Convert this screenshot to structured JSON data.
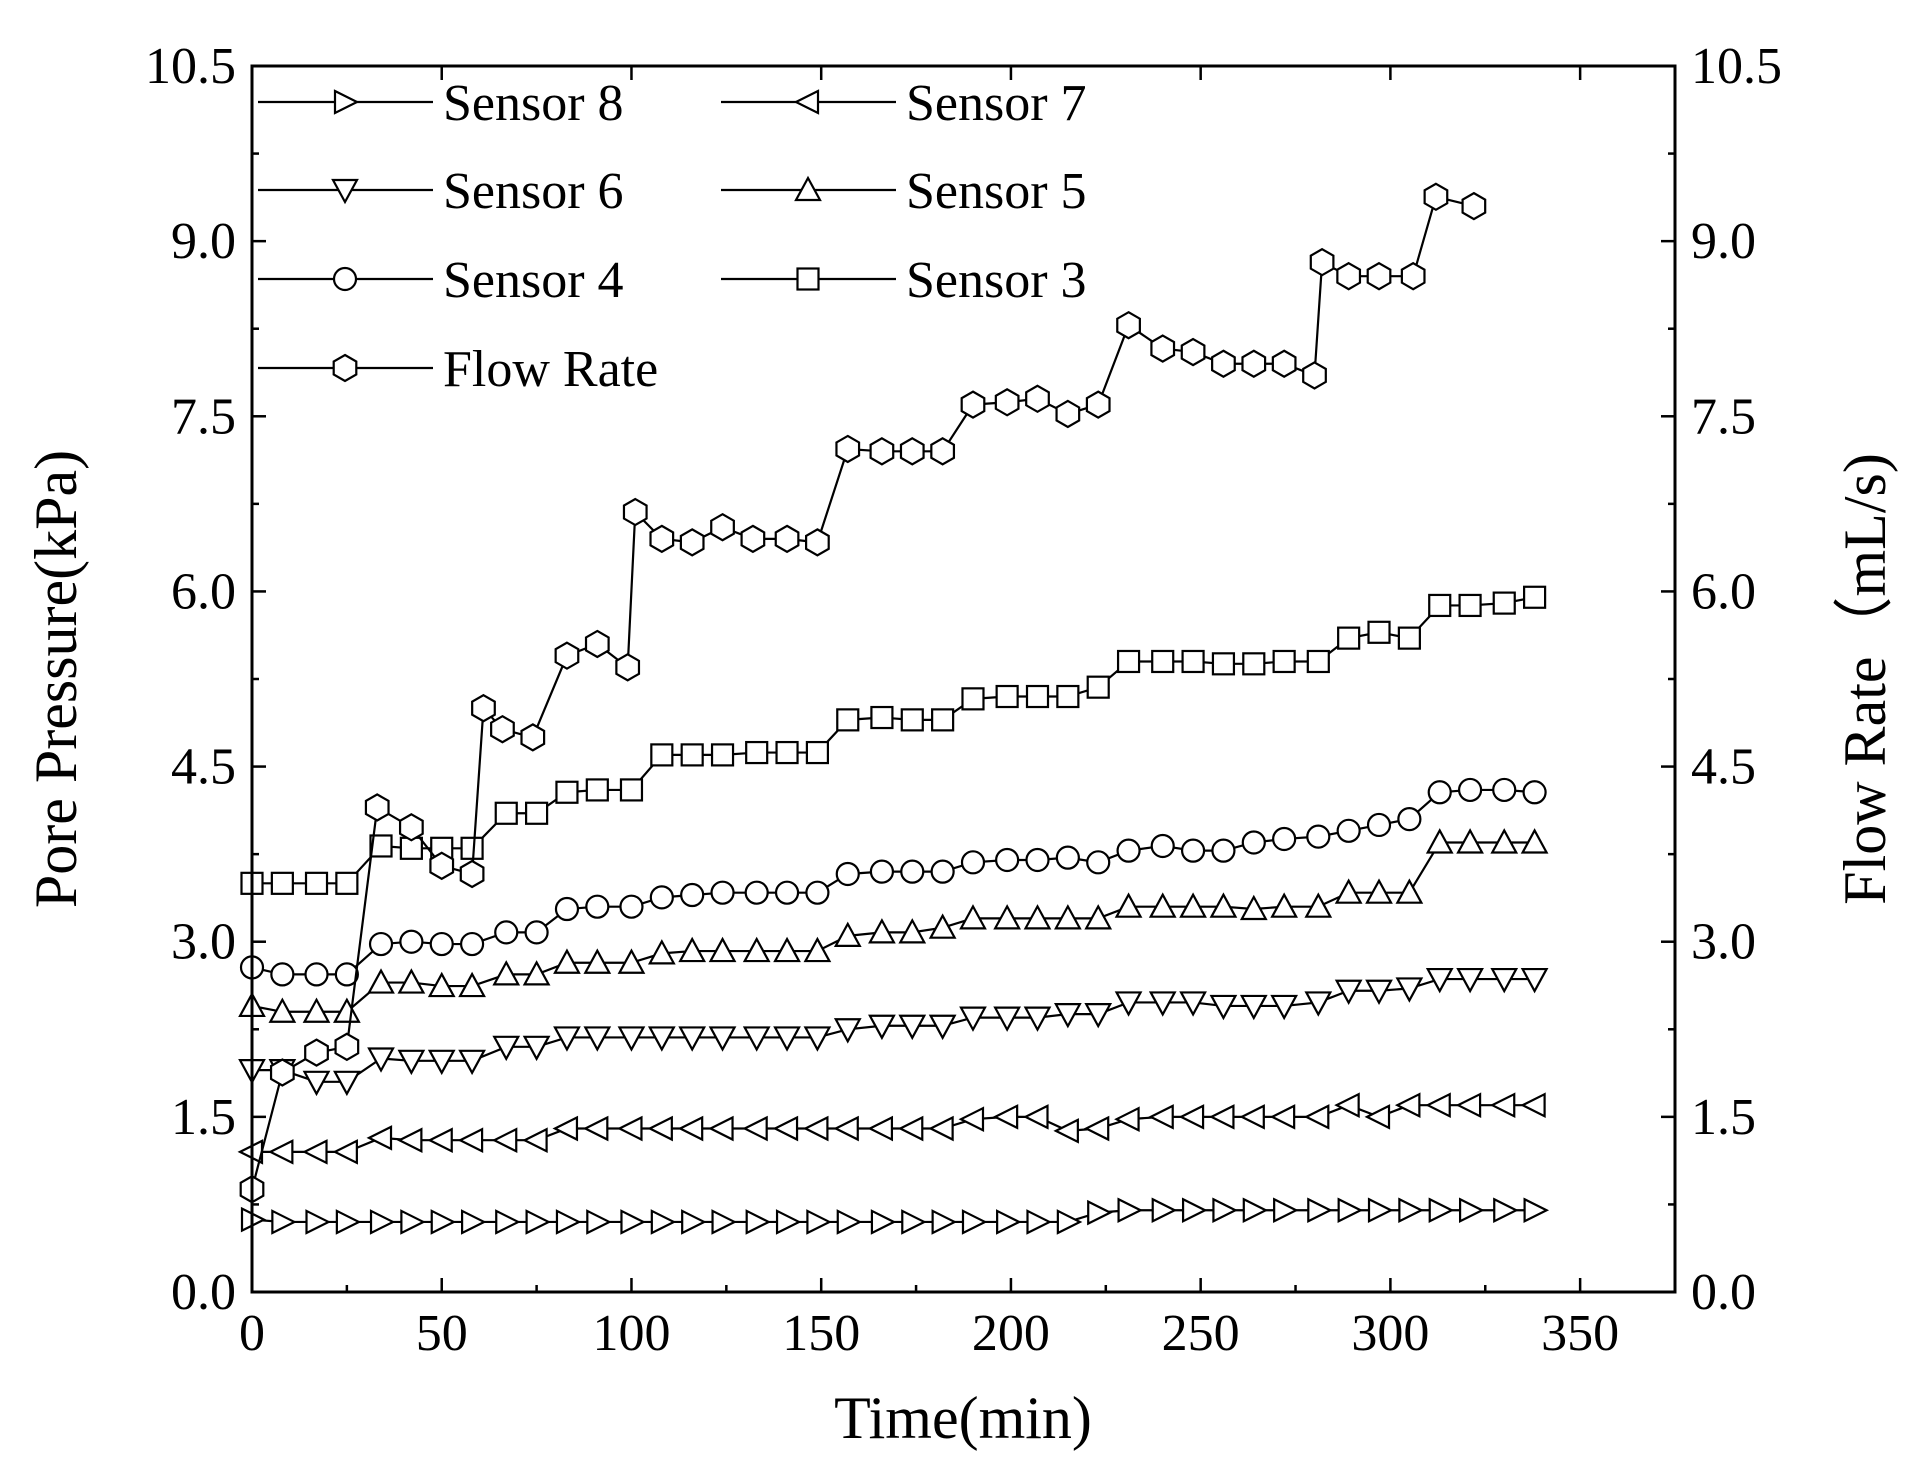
{
  "chart_data": {
    "type": "line",
    "title": "",
    "xlabel": "Time(min)",
    "ylabel": "Pore Pressure(kPa)",
    "y2label": "Flow Rate（mL/s)",
    "xlim": [
      0,
      375
    ],
    "ylim": [
      0,
      10.5
    ],
    "y2lim": [
      0,
      10.5
    ],
    "xticks": [
      "0",
      "50",
      "100",
      "150",
      "200",
      "250",
      "300",
      "350"
    ],
    "xtick_values": [
      0,
      50,
      100,
      150,
      200,
      250,
      300,
      350
    ],
    "yticks": [
      "0.0",
      "1.5",
      "3.0",
      "4.5",
      "6.0",
      "7.5",
      "9.0",
      "10.5"
    ],
    "ytick_values": [
      0,
      1.5,
      3.0,
      4.5,
      6.0,
      7.5,
      9.0,
      10.5
    ],
    "legend_position": "top-left",
    "series": [
      {
        "name": "Sensor 8",
        "marker": "triangle-right",
        "axis": "left",
        "x": [
          0,
          8,
          17,
          25,
          34,
          42,
          50,
          58,
          67,
          75,
          83,
          91,
          100,
          108,
          116,
          124,
          133,
          141,
          149,
          157,
          166,
          174,
          182,
          190,
          199,
          207,
          215,
          223,
          231,
          240,
          248,
          256,
          264,
          272,
          281,
          289,
          297,
          305,
          313,
          321,
          330,
          338
        ],
        "values": [
          0.62,
          0.6,
          0.6,
          0.6,
          0.6,
          0.6,
          0.6,
          0.6,
          0.6,
          0.6,
          0.6,
          0.6,
          0.6,
          0.6,
          0.6,
          0.6,
          0.6,
          0.6,
          0.6,
          0.6,
          0.6,
          0.6,
          0.6,
          0.6,
          0.6,
          0.6,
          0.6,
          0.68,
          0.7,
          0.7,
          0.7,
          0.7,
          0.7,
          0.7,
          0.7,
          0.7,
          0.7,
          0.7,
          0.7,
          0.7,
          0.7,
          0.7
        ]
      },
      {
        "name": "Sensor 7",
        "marker": "triangle-left",
        "axis": "left",
        "x": [
          0,
          8,
          17,
          25,
          34,
          42,
          50,
          58,
          67,
          75,
          83,
          91,
          100,
          108,
          116,
          124,
          133,
          141,
          149,
          157,
          166,
          174,
          182,
          190,
          199,
          207,
          215,
          223,
          231,
          240,
          248,
          256,
          264,
          272,
          281,
          289,
          297,
          305,
          313,
          321,
          330,
          338
        ],
        "values": [
          1.2,
          1.2,
          1.2,
          1.2,
          1.32,
          1.3,
          1.3,
          1.3,
          1.3,
          1.3,
          1.4,
          1.4,
          1.4,
          1.4,
          1.4,
          1.4,
          1.4,
          1.4,
          1.4,
          1.4,
          1.4,
          1.4,
          1.4,
          1.48,
          1.5,
          1.5,
          1.38,
          1.4,
          1.48,
          1.5,
          1.5,
          1.5,
          1.5,
          1.5,
          1.5,
          1.6,
          1.5,
          1.6,
          1.6,
          1.6,
          1.6,
          1.6
        ]
      },
      {
        "name": "Sensor 6",
        "marker": "triangle-down",
        "axis": "left",
        "x": [
          0,
          8,
          17,
          25,
          34,
          42,
          50,
          58,
          67,
          75,
          83,
          91,
          100,
          108,
          116,
          124,
          133,
          141,
          149,
          157,
          166,
          174,
          182,
          190,
          199,
          207,
          215,
          223,
          231,
          240,
          248,
          256,
          264,
          272,
          281,
          289,
          297,
          305,
          313,
          321,
          330,
          338
        ],
        "values": [
          1.9,
          1.9,
          1.8,
          1.8,
          2.0,
          1.98,
          1.98,
          1.98,
          2.1,
          2.1,
          2.18,
          2.18,
          2.18,
          2.18,
          2.18,
          2.18,
          2.18,
          2.18,
          2.18,
          2.25,
          2.28,
          2.28,
          2.28,
          2.35,
          2.35,
          2.35,
          2.38,
          2.38,
          2.48,
          2.48,
          2.48,
          2.45,
          2.45,
          2.45,
          2.48,
          2.58,
          2.58,
          2.6,
          2.68,
          2.68,
          2.68,
          2.68
        ]
      },
      {
        "name": "Sensor 5",
        "marker": "triangle-up",
        "axis": "left",
        "x": [
          0,
          8,
          17,
          25,
          34,
          42,
          50,
          58,
          67,
          75,
          83,
          91,
          100,
          108,
          116,
          124,
          133,
          141,
          149,
          157,
          166,
          174,
          182,
          190,
          199,
          207,
          215,
          223,
          231,
          240,
          248,
          256,
          264,
          272,
          281,
          289,
          297,
          305,
          313,
          321,
          330,
          338
        ],
        "values": [
          2.45,
          2.4,
          2.4,
          2.4,
          2.65,
          2.65,
          2.62,
          2.62,
          2.72,
          2.72,
          2.82,
          2.82,
          2.82,
          2.9,
          2.92,
          2.92,
          2.92,
          2.92,
          2.92,
          3.05,
          3.08,
          3.08,
          3.12,
          3.2,
          3.2,
          3.2,
          3.2,
          3.2,
          3.3,
          3.3,
          3.3,
          3.3,
          3.28,
          3.3,
          3.3,
          3.42,
          3.42,
          3.42,
          3.85,
          3.85,
          3.85,
          3.85
        ]
      },
      {
        "name": "Sensor 4",
        "marker": "circle",
        "axis": "left",
        "x": [
          0,
          8,
          17,
          25,
          34,
          42,
          50,
          58,
          67,
          75,
          83,
          91,
          100,
          108,
          116,
          124,
          133,
          141,
          149,
          157,
          166,
          174,
          182,
          190,
          199,
          207,
          215,
          223,
          231,
          240,
          248,
          256,
          264,
          272,
          281,
          289,
          297,
          305,
          313,
          321,
          330,
          338
        ],
        "values": [
          2.78,
          2.72,
          2.72,
          2.72,
          2.98,
          3.0,
          2.98,
          2.98,
          3.08,
          3.08,
          3.28,
          3.3,
          3.3,
          3.38,
          3.4,
          3.42,
          3.42,
          3.42,
          3.42,
          3.58,
          3.6,
          3.6,
          3.6,
          3.68,
          3.7,
          3.7,
          3.72,
          3.68,
          3.78,
          3.82,
          3.78,
          3.78,
          3.85,
          3.88,
          3.9,
          3.95,
          4.0,
          4.05,
          4.28,
          4.3,
          4.3,
          4.28
        ]
      },
      {
        "name": "Sensor 3",
        "marker": "square",
        "axis": "left",
        "x": [
          0,
          8,
          17,
          25,
          34,
          42,
          50,
          58,
          67,
          75,
          83,
          91,
          100,
          108,
          116,
          124,
          133,
          141,
          149,
          157,
          166,
          174,
          182,
          190,
          199,
          207,
          215,
          223,
          231,
          240,
          248,
          256,
          264,
          272,
          281,
          289,
          297,
          305,
          313,
          321,
          330,
          338
        ],
        "values": [
          3.5,
          3.5,
          3.5,
          3.5,
          3.82,
          3.8,
          3.8,
          3.8,
          4.1,
          4.1,
          4.28,
          4.3,
          4.3,
          4.6,
          4.6,
          4.6,
          4.62,
          4.62,
          4.62,
          4.9,
          4.92,
          4.9,
          4.9,
          5.08,
          5.1,
          5.1,
          5.1,
          5.18,
          5.4,
          5.4,
          5.4,
          5.38,
          5.38,
          5.4,
          5.4,
          5.6,
          5.65,
          5.6,
          5.88,
          5.88,
          5.9,
          5.95
        ]
      },
      {
        "name": "Flow Rate",
        "marker": "hexagon",
        "axis": "right",
        "x": [
          0,
          8,
          17,
          25,
          33,
          42,
          50,
          58,
          61,
          66,
          74,
          83,
          91,
          99,
          101,
          108,
          116,
          124,
          132,
          141,
          149,
          157,
          166,
          174,
          182,
          190,
          199,
          207,
          215,
          223,
          231,
          240,
          248,
          256,
          264,
          272,
          280,
          282,
          289,
          297,
          306,
          312,
          322
        ],
        "values": [
          0.88,
          1.88,
          2.05,
          2.1,
          4.15,
          3.98,
          3.65,
          3.58,
          5.0,
          4.82,
          4.75,
          5.45,
          5.55,
          5.35,
          6.68,
          6.45,
          6.42,
          6.55,
          6.45,
          6.45,
          6.42,
          7.22,
          7.2,
          7.2,
          7.2,
          7.6,
          7.62,
          7.65,
          7.52,
          7.6,
          8.28,
          8.08,
          8.05,
          7.95,
          7.95,
          7.95,
          7.85,
          8.82,
          8.7,
          8.7,
          8.7,
          9.38,
          9.3
        ]
      }
    ]
  }
}
